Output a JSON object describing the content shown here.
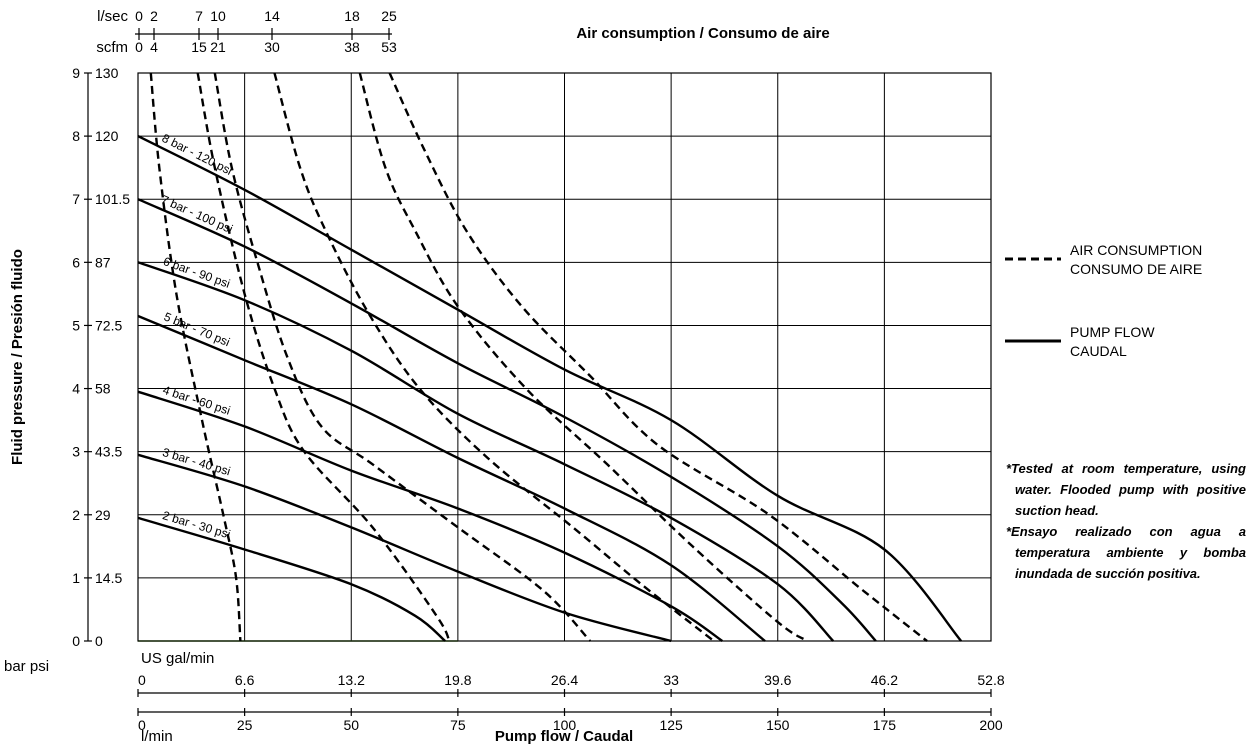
{
  "chart_data": {
    "type": "line",
    "title": "Air consumption / Consumo de aire",
    "xlabel": "Pump flow / Caudal",
    "ylabel": "Fluid pressure / Presión fluido",
    "x_units": {
      "lmin": "l/min",
      "usgal": "US gal/min",
      "lmin_ticks": [
        "0",
        "25",
        "50",
        "75",
        "100",
        "125",
        "150",
        "175",
        "200"
      ],
      "usgal_ticks": [
        "0",
        "6.6",
        "13.2",
        "19.8",
        "26.4",
        "33",
        "39.6",
        "46.2",
        "52.8"
      ]
    },
    "y_units": {
      "bar_psi": "bar psi",
      "bar_ticks": [
        "0",
        "1",
        "2",
        "3",
        "4",
        "5",
        "6",
        "7",
        "8",
        "9"
      ],
      "psi_ticks": [
        "0",
        "14.5",
        "29",
        "43.5",
        "58",
        "72.5",
        "87",
        "101.5",
        "120",
        "130"
      ]
    },
    "air_axes": {
      "lsec_label": "l/sec",
      "scfm_label": "scfm",
      "lsec_ticks": [
        "0",
        "2",
        "7",
        "10",
        "14",
        "18",
        "25"
      ],
      "scfm_ticks": [
        "0",
        "4",
        "15",
        "21",
        "30",
        "38",
        "53"
      ]
    },
    "xlim": [
      0,
      200
    ],
    "ylim": [
      0,
      9
    ],
    "grid": true,
    "legend": [
      {
        "style": "dashed",
        "line1": "AIR CONSUMPTION",
        "line2": "CONSUMO DE AIRE"
      },
      {
        "style": "solid",
        "line1": "PUMP FLOW",
        "line2": "CAUDAL"
      }
    ],
    "pump_flow_series": [
      {
        "name": "8 bar - 120 psi",
        "points": [
          [
            0,
            8.0
          ],
          [
            25,
            7.15
          ],
          [
            50,
            6.2
          ],
          [
            75,
            5.25
          ],
          [
            100,
            4.3
          ],
          [
            125,
            3.5
          ],
          [
            150,
            2.3
          ],
          [
            175,
            1.45
          ],
          [
            193,
            0
          ]
        ]
      },
      {
        "name": "7 bar - 100 psi",
        "points": [
          [
            0,
            7.0
          ],
          [
            25,
            6.25
          ],
          [
            50,
            5.35
          ],
          [
            75,
            4.4
          ],
          [
            100,
            3.55
          ],
          [
            125,
            2.6
          ],
          [
            150,
            1.5
          ],
          [
            165,
            0.6
          ],
          [
            173,
            0
          ]
        ]
      },
      {
        "name": "6 bar - 90 psi",
        "points": [
          [
            0,
            6.0
          ],
          [
            25,
            5.4
          ],
          [
            50,
            4.6
          ],
          [
            75,
            3.6
          ],
          [
            100,
            2.8
          ],
          [
            125,
            1.95
          ],
          [
            150,
            0.9
          ],
          [
            163,
            0
          ]
        ]
      },
      {
        "name": "5 bar - 70 psi",
        "points": [
          [
            0,
            5.15
          ],
          [
            25,
            4.45
          ],
          [
            50,
            3.75
          ],
          [
            75,
            2.9
          ],
          [
            100,
            2.1
          ],
          [
            125,
            1.2
          ],
          [
            147,
            0
          ]
        ]
      },
      {
        "name": "4 bar - 60 psi",
        "points": [
          [
            0,
            3.95
          ],
          [
            25,
            3.4
          ],
          [
            50,
            2.7
          ],
          [
            75,
            2.1
          ],
          [
            100,
            1.4
          ],
          [
            125,
            0.55
          ],
          [
            137,
            0
          ]
        ]
      },
      {
        "name": "3 bar - 40 psi",
        "points": [
          [
            0,
            2.95
          ],
          [
            25,
            2.45
          ],
          [
            50,
            1.8
          ],
          [
            75,
            1.1
          ],
          [
            100,
            0.45
          ],
          [
            125,
            0
          ]
        ]
      },
      {
        "name": "2 bar - 30 psi",
        "points": [
          [
            0,
            1.95
          ],
          [
            25,
            1.45
          ],
          [
            50,
            0.9
          ],
          [
            65,
            0.4
          ],
          [
            72,
            0
          ]
        ]
      }
    ],
    "air_consumption_series": [
      {
        "label": "2",
        "points": [
          [
            3,
            9.0
          ],
          [
            5,
            7.5
          ],
          [
            9,
            5.5
          ],
          [
            15,
            3.5
          ],
          [
            20,
            2.0
          ],
          [
            23,
            1.0
          ],
          [
            24,
            0
          ]
        ]
      },
      {
        "label": "7",
        "points": [
          [
            14,
            9.0
          ],
          [
            18,
            7.5
          ],
          [
            25,
            5.5
          ],
          [
            32,
            4.0
          ],
          [
            39,
            3.0
          ],
          [
            55,
            1.8
          ],
          [
            70,
            0.4
          ],
          [
            73,
            0
          ]
        ]
      },
      {
        "label": "10",
        "points": [
          [
            18,
            9.0
          ],
          [
            22,
            7.5
          ],
          [
            28,
            6.0
          ],
          [
            35,
            4.5
          ],
          [
            43,
            3.4
          ],
          [
            55,
            2.8
          ],
          [
            75,
            1.8
          ],
          [
            95,
            0.8
          ],
          [
            106,
            0
          ]
        ]
      },
      {
        "label": "14",
        "points": [
          [
            32,
            9.0
          ],
          [
            38,
            7.5
          ],
          [
            44,
            6.5
          ],
          [
            54,
            5.2
          ],
          [
            66,
            4.0
          ],
          [
            82,
            2.9
          ],
          [
            102,
            1.8
          ],
          [
            118,
            0.9
          ],
          [
            135,
            0
          ]
        ]
      },
      {
        "label": "18",
        "points": [
          [
            52,
            9.0
          ],
          [
            58,
            7.5
          ],
          [
            65,
            6.5
          ],
          [
            75,
            5.3
          ],
          [
            91,
            4.0
          ],
          [
            110,
            2.8
          ],
          [
            130,
            1.5
          ],
          [
            150,
            0.3
          ],
          [
            157,
            0
          ]
        ]
      },
      {
        "label": "25",
        "points": [
          [
            59,
            9.0
          ],
          [
            67,
            7.8
          ],
          [
            77,
            6.5
          ],
          [
            90,
            5.3
          ],
          [
            106,
            4.2
          ],
          [
            122,
            3.1
          ],
          [
            148,
            2.0
          ],
          [
            170,
            0.8
          ],
          [
            185,
            0
          ]
        ]
      }
    ]
  },
  "notes": {
    "en": "*Tested at room temperature, using water. Flooded pump with positive suction head.",
    "es": "*Ensayo realizado con agua a temperatura ambiente y bomba inundada de succión positiva."
  }
}
